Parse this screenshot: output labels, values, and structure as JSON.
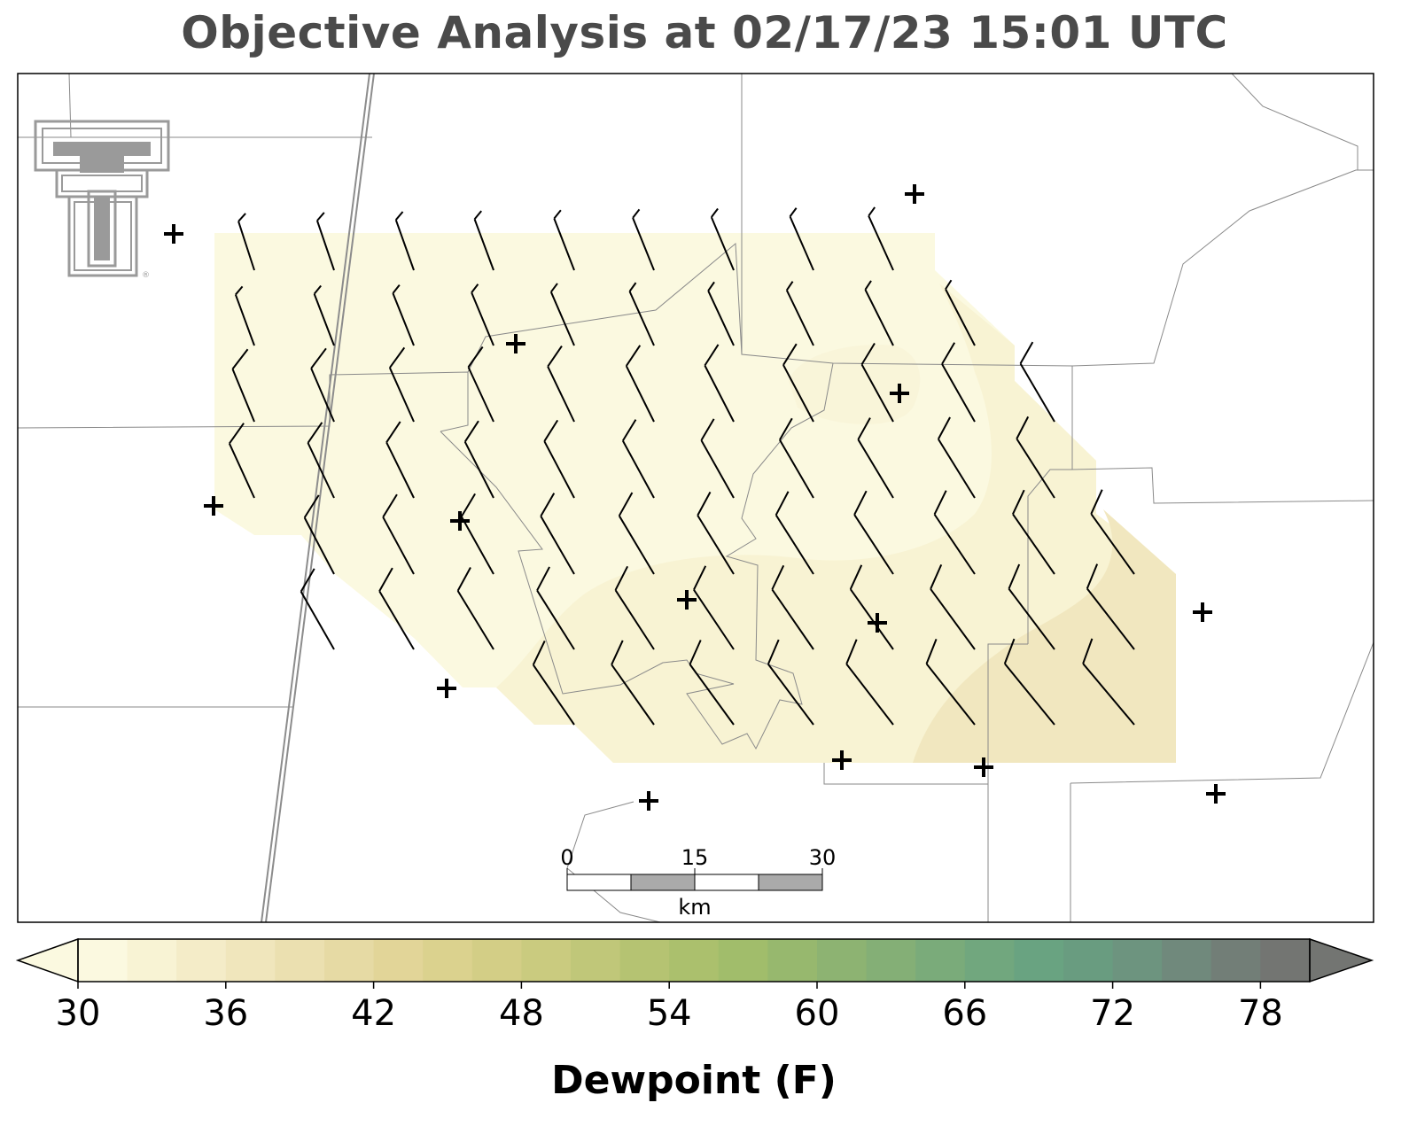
{
  "title": "Objective Analysis at 02/17/23 15:01 UTC",
  "logo": {
    "name": "texas-tech-double-t-logo",
    "color": "#9a9a9a"
  },
  "scalebar": {
    "ticks": [
      "0",
      "15",
      "30"
    ],
    "unit": "km"
  },
  "colorbar": {
    "label": "Dewpoint (F)",
    "ticks": [
      "30",
      "36",
      "42",
      "48",
      "54",
      "60",
      "66",
      "72",
      "78"
    ],
    "range": [
      30,
      80
    ],
    "colors": [
      "#fbf9e0",
      "#f8f3d4",
      "#f4ecc8",
      "#f0e6bc",
      "#ebe0b0",
      "#e6daa4",
      "#e2d598",
      "#dbd28e",
      "#d3ce86",
      "#cacb7f",
      "#c0c779",
      "#b5c372",
      "#abc06d",
      "#a1bd6b",
      "#97b86e",
      "#8db372",
      "#84af76",
      "#7aab7a",
      "#71a77e",
      "#69a381",
      "#699c80",
      "#6d947f",
      "#70897c",
      "#727e77",
      "#737572"
    ]
  },
  "shading_levels": {
    "fill_light": "#fbf9e0",
    "fill_mid": "#f8f3d3",
    "fill_dark": "#f1e7bf"
  },
  "stations": [
    [
      196,
      264
    ],
    [
      1032,
      219
    ],
    [
      582,
      388
    ],
    [
      1015,
      444
    ],
    [
      241,
      571
    ],
    [
      519,
      588
    ],
    [
      775,
      677
    ],
    [
      990,
      703
    ],
    [
      1357,
      691
    ],
    [
      504,
      777
    ],
    [
      950,
      858
    ],
    [
      1110,
      866
    ],
    [
      732,
      904
    ],
    [
      1372,
      896
    ]
  ]
}
